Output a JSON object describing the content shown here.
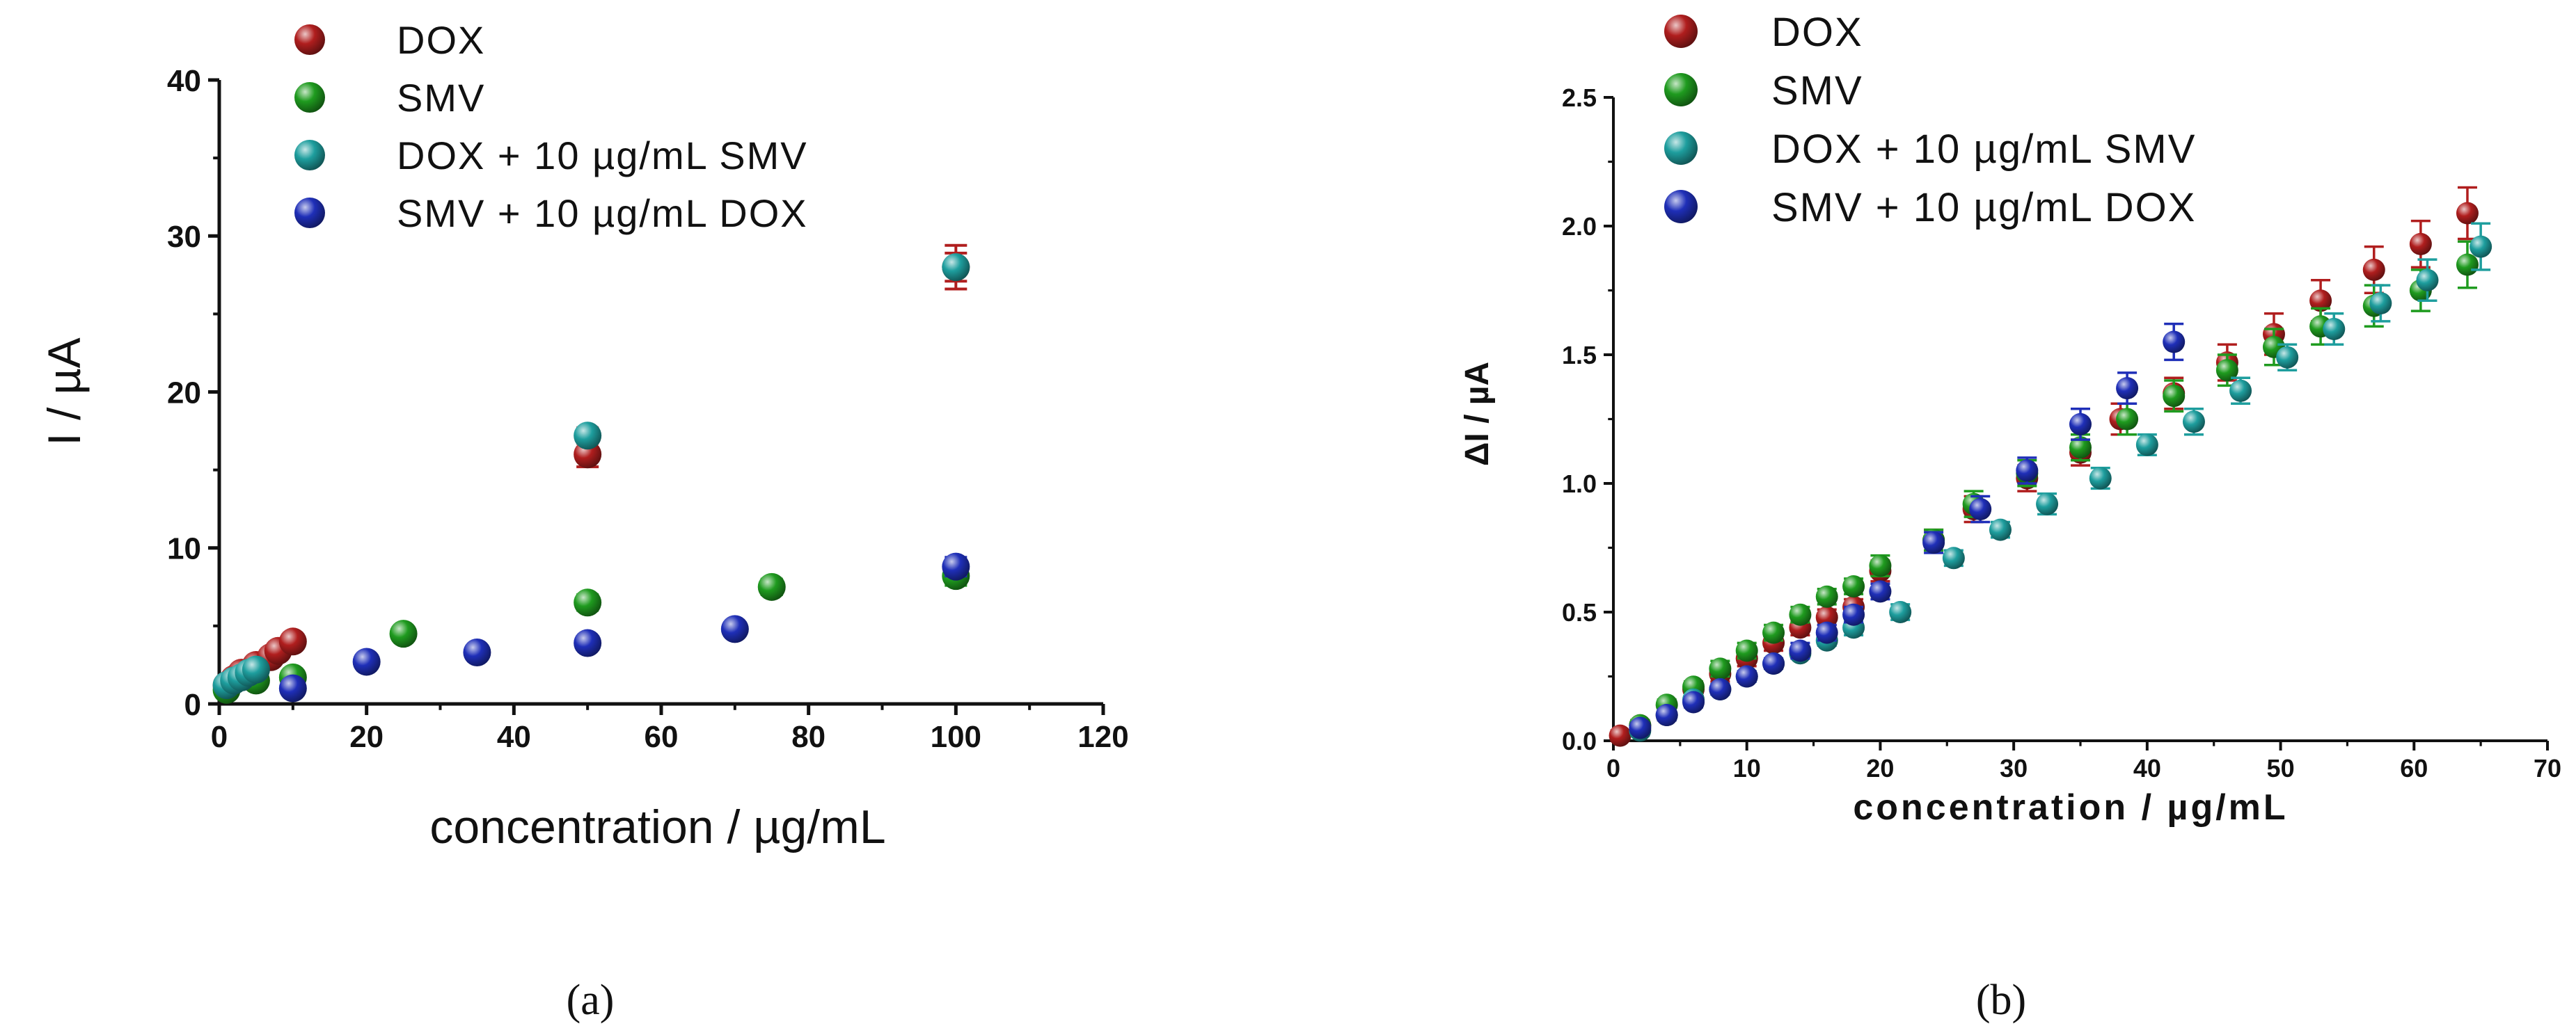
{
  "chart_data": [
    {
      "id": "a",
      "type": "scatter",
      "caption": "(a)",
      "xlabel": "concentration / µg/mL",
      "ylabel": "I / µA",
      "xlim": [
        0,
        120
      ],
      "ylim": [
        0,
        40
      ],
      "xticks": [
        0,
        20,
        40,
        60,
        80,
        100,
        120
      ],
      "yticks": [
        0,
        10,
        20,
        30,
        40
      ],
      "legend_position": "top-left",
      "series": [
        {
          "name": "DOX",
          "color": "#b01e1e",
          "error_color": "#b01e1e",
          "x": [
            1,
            2,
            3,
            5,
            7,
            8,
            10,
            50,
            100
          ],
          "y": [
            1.2,
            1.6,
            2.0,
            2.5,
            3.0,
            3.4,
            4.0,
            16.0,
            28.0
          ],
          "err": [
            0.3,
            0.3,
            0.3,
            0.3,
            0.3,
            0.3,
            0.4,
            0.8,
            1.4
          ]
        },
        {
          "name": "SMV",
          "color": "#1f9b1f",
          "error_color": "#1f9b1f",
          "x": [
            1,
            5,
            10,
            25,
            50,
            75,
            100
          ],
          "y": [
            0.9,
            1.5,
            1.7,
            4.5,
            6.5,
            7.5,
            8.2
          ],
          "err": [
            0.3,
            0.3,
            0.3,
            0.4,
            0.5,
            0.5,
            0.6
          ]
        },
        {
          "name": "DOX + 10 µg/mL SMV",
          "color": "#1e9e9e",
          "error_color": "#b01e1e",
          "x": [
            1,
            2,
            3,
            4,
            5,
            50,
            100
          ],
          "y": [
            1.2,
            1.5,
            1.7,
            2.0,
            2.2,
            17.2,
            28.0
          ],
          "err": [
            0.2,
            0.2,
            0.2,
            0.2,
            0.2,
            0.5,
            0.9
          ]
        },
        {
          "name": "SMV + 10 µg/mL DOX",
          "color": "#1f2fb8",
          "error_color": "#1f2fb8",
          "x": [
            10,
            20,
            35,
            50,
            70,
            100
          ],
          "y": [
            1.0,
            2.7,
            3.3,
            3.9,
            4.8,
            8.8
          ],
          "err": [
            0.3,
            0.4,
            0.4,
            0.4,
            0.4,
            0.6
          ]
        }
      ]
    },
    {
      "id": "b",
      "type": "scatter",
      "caption": "(b)",
      "xlabel": "concentration / µg/mL",
      "ylabel": "ΔI / µA",
      "xlim": [
        0,
        70
      ],
      "ylim": [
        0,
        2.5
      ],
      "xticks": [
        0,
        10,
        20,
        30,
        40,
        50,
        60,
        70
      ],
      "yticks": [
        0.0,
        0.5,
        1.0,
        1.5,
        2.0,
        2.5
      ],
      "ytick_labels": [
        "0.0",
        "0.5",
        "1.0",
        "1.5",
        "2.0",
        "2.5"
      ],
      "legend_position": "top-left",
      "series": [
        {
          "name": "DOX",
          "color": "#b01e1e",
          "error_color": "#b01e1e",
          "x": [
            0.5,
            2,
            4,
            6,
            8,
            10,
            12,
            14,
            16,
            18,
            20,
            24,
            27,
            31,
            35,
            38,
            42,
            46,
            49.5,
            53,
            57,
            60.5,
            64
          ],
          "y": [
            0.02,
            0.06,
            0.1,
            0.2,
            0.26,
            0.32,
            0.38,
            0.44,
            0.48,
            0.52,
            0.66,
            0.78,
            0.9,
            1.02,
            1.12,
            1.25,
            1.35,
            1.47,
            1.58,
            1.71,
            1.83,
            1.93,
            2.05
          ],
          "err": [
            0.02,
            0.02,
            0.02,
            0.03,
            0.03,
            0.03,
            0.03,
            0.03,
            0.03,
            0.03,
            0.04,
            0.04,
            0.05,
            0.05,
            0.05,
            0.06,
            0.06,
            0.07,
            0.08,
            0.08,
            0.09,
            0.09,
            0.1
          ]
        },
        {
          "name": "SMV",
          "color": "#1f9b1f",
          "error_color": "#1f9b1f",
          "x": [
            2,
            4,
            6,
            8,
            10,
            12,
            14,
            16,
            18,
            20,
            24,
            27,
            31,
            35,
            38.5,
            42,
            46,
            49.5,
            53,
            57,
            60.5,
            64
          ],
          "y": [
            0.06,
            0.14,
            0.21,
            0.28,
            0.35,
            0.42,
            0.49,
            0.56,
            0.6,
            0.68,
            0.78,
            0.92,
            1.04,
            1.14,
            1.25,
            1.34,
            1.44,
            1.53,
            1.61,
            1.69,
            1.75,
            1.85
          ],
          "err": [
            0.02,
            0.02,
            0.02,
            0.03,
            0.03,
            0.03,
            0.03,
            0.03,
            0.03,
            0.04,
            0.04,
            0.05,
            0.05,
            0.05,
            0.06,
            0.06,
            0.06,
            0.07,
            0.07,
            0.08,
            0.08,
            0.09
          ]
        },
        {
          "name": "DOX + 10 µg/mL SMV",
          "color": "#1e9e9e",
          "error_color": "#1e9e9e",
          "x": [
            2,
            4,
            6,
            8,
            10,
            12,
            14,
            16,
            18,
            21.5,
            25.5,
            29,
            32.5,
            36.5,
            40,
            43.5,
            47,
            50.5,
            54,
            57.5,
            61,
            65
          ],
          "y": [
            0.04,
            0.1,
            0.16,
            0.2,
            0.25,
            0.3,
            0.34,
            0.39,
            0.44,
            0.5,
            0.71,
            0.82,
            0.92,
            1.02,
            1.15,
            1.24,
            1.36,
            1.49,
            1.6,
            1.7,
            1.79,
            1.92
          ],
          "err": [
            0.02,
            0.02,
            0.02,
            0.02,
            0.02,
            0.02,
            0.02,
            0.02,
            0.03,
            0.03,
            0.03,
            0.03,
            0.04,
            0.04,
            0.04,
            0.05,
            0.05,
            0.05,
            0.06,
            0.07,
            0.08,
            0.09
          ]
        },
        {
          "name": "SMV + 10 µg/mL DOX",
          "color": "#1f2fb8",
          "error_color": "#1f2fb8",
          "x": [
            2,
            4,
            6,
            8,
            10,
            12,
            14,
            16,
            18,
            20,
            24,
            27.5,
            31,
            35,
            38.5,
            42
          ],
          "y": [
            0.05,
            0.1,
            0.15,
            0.2,
            0.25,
            0.3,
            0.35,
            0.42,
            0.49,
            0.58,
            0.77,
            0.9,
            1.05,
            1.23,
            1.37,
            1.55
          ],
          "err": [
            0.02,
            0.02,
            0.02,
            0.02,
            0.02,
            0.02,
            0.03,
            0.03,
            0.03,
            0.03,
            0.04,
            0.05,
            0.05,
            0.06,
            0.06,
            0.07
          ]
        }
      ]
    }
  ]
}
